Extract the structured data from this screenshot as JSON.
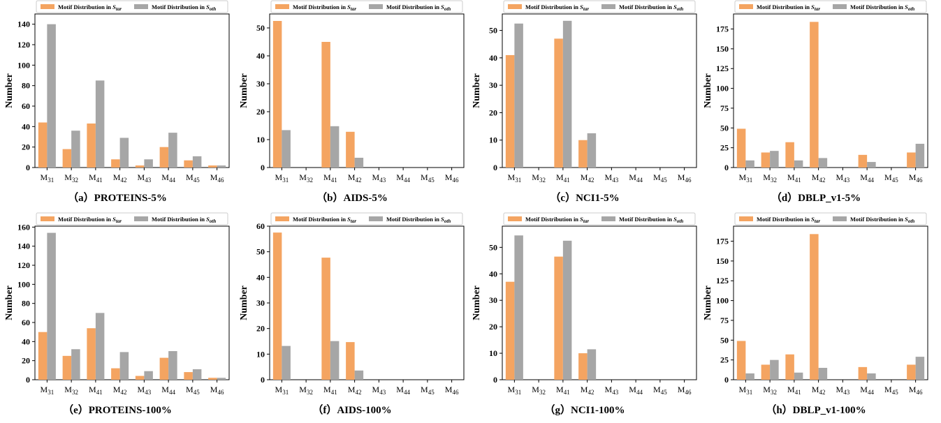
{
  "figure": {
    "legend": {
      "labels": [
        "Motif Distribution in S_tar",
        "Motif Distribution in S_oth"
      ],
      "label_prefix": "Motif Distribution in ",
      "symbols": [
        "S",
        "S"
      ],
      "subscripts": [
        "tar",
        "oth"
      ]
    },
    "colors": {
      "tar": "#F4A461",
      "oth": "#A6A6A6",
      "axis": "#000000"
    },
    "ylabel": "Number",
    "x_labels": [
      "M31",
      "M32",
      "M41",
      "M42",
      "M43",
      "M44",
      "M45",
      "M46"
    ],
    "x_label_parts": [
      {
        "base": "M",
        "sub": "31"
      },
      {
        "base": "M",
        "sub": "32"
      },
      {
        "base": "M",
        "sub": "41"
      },
      {
        "base": "M",
        "sub": "42"
      },
      {
        "base": "M",
        "sub": "43"
      },
      {
        "base": "M",
        "sub": "44"
      },
      {
        "base": "M",
        "sub": "45"
      },
      {
        "base": "M",
        "sub": "46"
      }
    ]
  },
  "chart_data": [
    {
      "type": "bar",
      "caption": "（a）PROTEINS-5%",
      "categories": [
        "M31",
        "M32",
        "M41",
        "M42",
        "M43",
        "M44",
        "M45",
        "M46"
      ],
      "series": [
        {
          "name": "Motif Distribution in S_tar",
          "values": [
            44,
            18,
            43,
            8,
            2,
            20,
            7,
            2
          ]
        },
        {
          "name": "Motif Distribution in S_oth",
          "values": [
            140,
            36,
            85,
            29,
            8,
            34,
            11,
            2
          ]
        }
      ],
      "ylabel": "Number",
      "ylim": [
        0,
        150
      ],
      "yticks": [
        0,
        20,
        40,
        60,
        80,
        100,
        120,
        140
      ],
      "legend": "top"
    },
    {
      "type": "bar",
      "caption": "（b）AIDS-5%",
      "categories": [
        "M31",
        "M32",
        "M41",
        "M42",
        "M43",
        "M44",
        "M45",
        "M46"
      ],
      "series": [
        {
          "name": "Motif Distribution in S_tar",
          "values": [
            52.5,
            0,
            45,
            12.8,
            0,
            0,
            0,
            0
          ]
        },
        {
          "name": "Motif Distribution in S_oth",
          "values": [
            13.4,
            0,
            14.8,
            3.5,
            0,
            0,
            0,
            0
          ]
        }
      ],
      "ylabel": "Number",
      "ylim": [
        0,
        55
      ],
      "yticks": [
        0,
        10,
        20,
        30,
        40,
        50
      ],
      "legend": "top"
    },
    {
      "type": "bar",
      "caption": "（c）NCI1-5%",
      "categories": [
        "M31",
        "M32",
        "M41",
        "M42",
        "M43",
        "M44",
        "M45",
        "M46"
      ],
      "series": [
        {
          "name": "Motif Distribution in S_tar",
          "values": [
            41,
            0,
            47,
            10,
            0,
            0,
            0,
            0
          ]
        },
        {
          "name": "Motif Distribution in S_oth",
          "values": [
            52.5,
            0,
            53.5,
            12.5,
            0,
            0,
            0,
            0
          ]
        }
      ],
      "ylabel": "Number",
      "ylim": [
        0,
        56
      ],
      "yticks": [
        0,
        10,
        20,
        30,
        40,
        50
      ],
      "legend": "top"
    },
    {
      "type": "bar",
      "caption": "（d）DBLP_v1-5%",
      "categories": [
        "M31",
        "M32",
        "M41",
        "M42",
        "M43",
        "M44",
        "M45",
        "M46"
      ],
      "series": [
        {
          "name": "Motif Distribution in S_tar",
          "values": [
            49,
            19,
            32,
            184,
            0,
            16,
            0,
            19
          ]
        },
        {
          "name": "Motif Distribution in S_oth",
          "values": [
            9,
            21,
            9,
            12,
            0,
            7,
            0,
            30
          ]
        }
      ],
      "ylabel": "Number",
      "ylim": [
        0,
        194
      ],
      "yticks": [
        0,
        25,
        50,
        75,
        100,
        125,
        150,
        175
      ],
      "legend": "top"
    },
    {
      "type": "bar",
      "caption": "（e）PROTEINS-100%",
      "categories": [
        "M31",
        "M32",
        "M41",
        "M42",
        "M43",
        "M44",
        "M45",
        "M46"
      ],
      "series": [
        {
          "name": "Motif Distribution in S_tar",
          "values": [
            50,
            25,
            54,
            12,
            4,
            23,
            8,
            2
          ]
        },
        {
          "name": "Motif Distribution in S_oth",
          "values": [
            154,
            32,
            70,
            29,
            9,
            30,
            11,
            2
          ]
        }
      ],
      "ylabel": "Number",
      "ylim": [
        0,
        161
      ],
      "yticks": [
        0,
        20,
        40,
        60,
        80,
        100,
        120,
        140,
        160
      ],
      "legend": "top"
    },
    {
      "type": "bar",
      "caption": "（f）AIDS-100%",
      "categories": [
        "M31",
        "M32",
        "M41",
        "M42",
        "M43",
        "M44",
        "M45",
        "M46"
      ],
      "series": [
        {
          "name": "Motif Distribution in S_tar",
          "values": [
            57.5,
            0,
            47.7,
            14.7,
            0,
            0,
            0,
            0
          ]
        },
        {
          "name": "Motif Distribution in S_oth",
          "values": [
            13.2,
            0,
            15.1,
            3.6,
            0,
            0,
            0,
            0
          ]
        }
      ],
      "ylabel": "Number",
      "ylim": [
        0,
        60
      ],
      "yticks": [
        0,
        10,
        20,
        30,
        40,
        50,
        60
      ],
      "legend": "top"
    },
    {
      "type": "bar",
      "caption": "（g）NCI1-100%",
      "categories": [
        "M31",
        "M32",
        "M41",
        "M42",
        "M43",
        "M44",
        "M45",
        "M46"
      ],
      "series": [
        {
          "name": "Motif Distribution in S_tar",
          "values": [
            37,
            0,
            46.5,
            10,
            0,
            0,
            0,
            0
          ]
        },
        {
          "name": "Motif Distribution in S_oth",
          "values": [
            54.5,
            0,
            52.5,
            11.5,
            0,
            0,
            0,
            0
          ]
        }
      ],
      "ylabel": "Number",
      "ylim": [
        0,
        58
      ],
      "yticks": [
        0,
        10,
        20,
        30,
        40,
        50
      ],
      "legend": "top"
    },
    {
      "type": "bar",
      "caption": "（h）DBLP_v1-100%",
      "categories": [
        "M31",
        "M32",
        "M41",
        "M42",
        "M43",
        "M44",
        "M45",
        "M46"
      ],
      "series": [
        {
          "name": "Motif Distribution in S_tar",
          "values": [
            49,
            19,
            32,
            184,
            0,
            16,
            0,
            19
          ]
        },
        {
          "name": "Motif Distribution in S_oth",
          "values": [
            8,
            25,
            9,
            15,
            0,
            8,
            0,
            29
          ]
        }
      ],
      "ylabel": "Number",
      "ylim": [
        0,
        194
      ],
      "yticks": [
        0,
        25,
        50,
        75,
        100,
        125,
        150,
        175
      ],
      "legend": "top"
    }
  ]
}
